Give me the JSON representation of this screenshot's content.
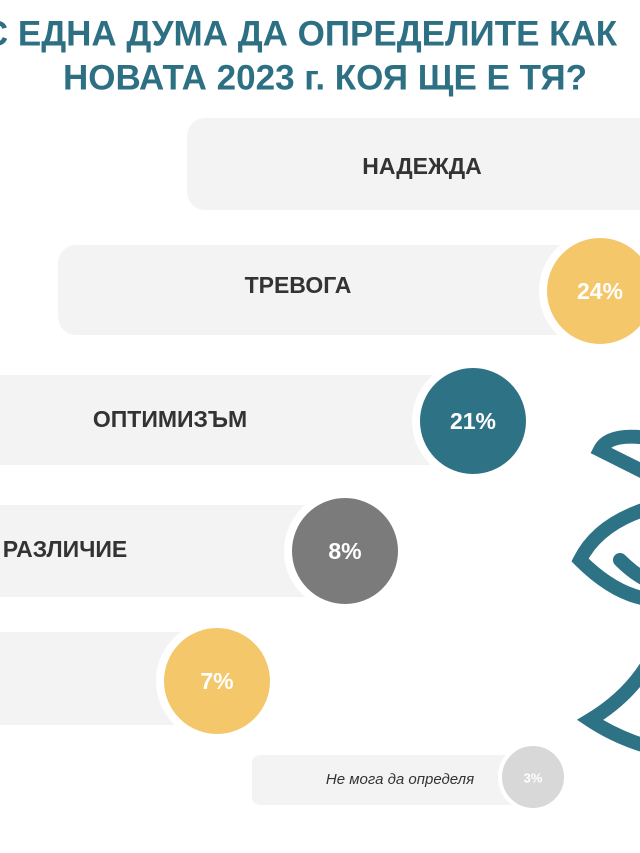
{
  "chart_data": {
    "type": "bubble-bar",
    "title": [
      "С ЕДНА ДУМА ДА ОПРЕДЕЛИТЕ КАК",
      "НОВАТА 2023 г. КОЯ ЩЕ Е ТЯ?"
    ],
    "categories": [
      "НАДЕЖДА",
      "ТРЕВОГА",
      "ОПТИМИЗЪМ",
      "РАЗЛИЧИЕ",
      null,
      "Не мога да определя"
    ],
    "values": [
      null,
      24,
      21,
      8,
      7,
      3
    ],
    "value_labels": [
      null,
      "24%",
      "21%",
      "8%",
      "7%",
      "3%"
    ],
    "colors": [
      null,
      "#f4c76a",
      "#2e7285",
      "#7b7b7b",
      "#f4c76a",
      "#d8d8d8"
    ]
  }
}
